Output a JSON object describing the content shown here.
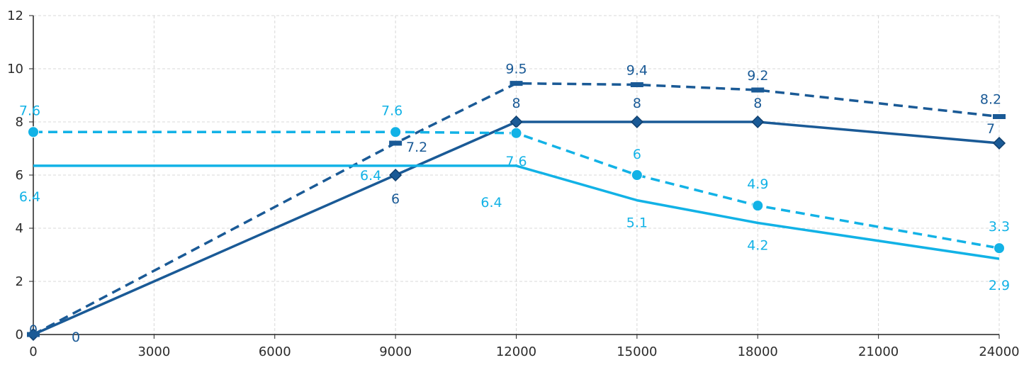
{
  "chart_data": {
    "type": "line",
    "title": "",
    "xlabel": "",
    "ylabel": "",
    "xlim": [
      0,
      24000
    ],
    "ylim": [
      0,
      12
    ],
    "x_ticks": [
      "0",
      "3000",
      "6000",
      "9000",
      "12000",
      "15000",
      "18000",
      "21000",
      "24000"
    ],
    "y_ticks": [
      "0",
      "2",
      "4",
      "6",
      "8",
      "10",
      "12"
    ],
    "grid": true,
    "legend": "none",
    "series": [
      {
        "color": "#1a5a96",
        "style": "solid",
        "marker": "diamond",
        "x": [
          0,
          9000,
          12000,
          15000,
          18000,
          24000
        ],
        "y": [
          0,
          6,
          8,
          8,
          8,
          7.2
        ],
        "labels": [
          "0",
          "6",
          "8",
          "8",
          "8",
          "7"
        ]
      },
      {
        "color": "#1a5a96",
        "style": "dashed",
        "marker": "dash",
        "x": [
          0,
          9000,
          12000,
          15000,
          18000,
          24000
        ],
        "y": [
          0,
          7.2,
          9.45,
          9.4,
          9.2,
          8.2
        ],
        "labels": [
          "0",
          "7.2",
          "9.5",
          "9.4",
          "9.2",
          "8.2"
        ]
      },
      {
        "color": "#12b2e6",
        "style": "solid",
        "marker": "none",
        "x": [
          0,
          12000,
          15000,
          18000,
          24000
        ],
        "y": [
          6.35,
          6.35,
          5.05,
          4.2,
          2.85
        ],
        "labels": [
          "6.4",
          "6.4",
          "5.1",
          "4.2",
          "2.9"
        ]
      },
      {
        "color": "#12b2e6",
        "style": "dashed",
        "marker": "circle",
        "x": [
          0,
          9000,
          12000,
          15000,
          18000,
          24000
        ],
        "y": [
          7.62,
          7.62,
          7.58,
          6,
          4.85,
          3.25
        ],
        "labels": [
          "7.6",
          "7.6",
          "7.6",
          "6",
          "4.9",
          "3.3"
        ]
      }
    ],
    "extra_labels": [
      {
        "text": "6.4",
        "color": "#12b2e6",
        "x": 9000,
        "y": 6.35
      }
    ]
  }
}
